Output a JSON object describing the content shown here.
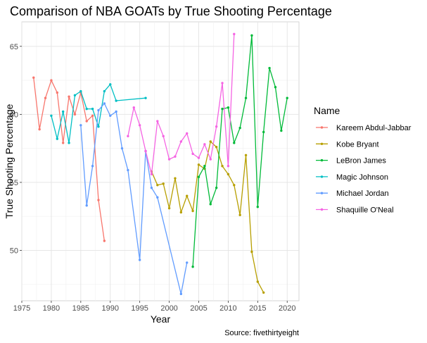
{
  "chart_data": {
    "type": "line",
    "title": "Comparison of NBA GOATs by True Shooting Percentage",
    "xlabel": "Year",
    "ylabel": "True Shooting Percentage",
    "caption": "Source: fivethirtyeight",
    "xlim": [
      1975,
      2022
    ],
    "ylim": [
      46.3,
      66.8
    ],
    "x_ticks": [
      1975,
      1980,
      1985,
      1990,
      1995,
      2000,
      2005,
      2010,
      2015,
      2020
    ],
    "y_ticks": [
      50,
      55,
      60,
      65
    ],
    "grid": true,
    "legend": {
      "title": "Name",
      "position": "right"
    },
    "series": [
      {
        "name": "Kareem Abdul-Jabbar",
        "color": "#F8766D",
        "x": [
          1977,
          1978,
          1979,
          1980,
          1981,
          1982,
          1983,
          1984,
          1985,
          1986,
          1987,
          1988,
          1989
        ],
        "y": [
          62.7,
          58.9,
          61.2,
          62.5,
          61.6,
          57.9,
          61.3,
          60.0,
          61.6,
          59.5,
          59.9,
          53.7,
          50.7
        ]
      },
      {
        "name": "Kobe Bryant",
        "color": "#B79F00",
        "x": [
          1997,
          1998,
          1999,
          2000,
          2001,
          2002,
          2003,
          2004,
          2005,
          2006,
          2007,
          2008,
          2009,
          2010,
          2011,
          2012,
          2013,
          2014,
          2015,
          2016
        ],
        "y": [
          55.8,
          54.8,
          54.9,
          53.1,
          55.3,
          52.8,
          54.0,
          52.9,
          56.3,
          56.0,
          58.0,
          57.6,
          56.2,
          55.6,
          54.8,
          52.6,
          57.0,
          49.9,
          47.7,
          46.9
        ]
      },
      {
        "name": "LeBron James",
        "color": "#00BA38",
        "x": [
          2004,
          2005,
          2006,
          2007,
          2008,
          2009,
          2010,
          2011,
          2012,
          2013,
          2014,
          2015,
          2016,
          2017,
          2018,
          2019,
          2020
        ],
        "y": [
          48.8,
          55.4,
          56.2,
          53.4,
          54.6,
          60.4,
          60.5,
          57.9,
          59.0,
          61.2,
          65.8,
          53.2,
          58.7,
          63.4,
          62.0,
          58.8,
          61.2
        ]
      },
      {
        "name": "Magic Johnson",
        "color": "#00BFC4",
        "x": [
          1980,
          1981,
          1982,
          1983,
          1984,
          1985,
          1986,
          1987,
          1988,
          1989,
          1990,
          1991,
          1996
        ],
        "y": [
          59.9,
          58.2,
          60.2,
          57.9,
          61.4,
          61.7,
          60.4,
          60.4,
          59.1,
          61.7,
          62.2,
          61.0,
          61.2
        ]
      },
      {
        "name": "Michael Jordan",
        "color": "#619CFF",
        "x": [
          1985,
          1986,
          1987,
          1988,
          1989,
          1990,
          1991,
          1992,
          1993,
          1995,
          1996,
          1997,
          1998,
          2002,
          2003
        ],
        "y": [
          59.2,
          53.3,
          56.2,
          60.3,
          60.8,
          59.9,
          60.2,
          57.5,
          55.9,
          49.3,
          57.3,
          54.6,
          53.9,
          46.8,
          49.1
        ]
      },
      {
        "name": "Shaquille O'Neal",
        "color": "#F564E3",
        "x": [
          1993,
          1994,
          1995,
          1996,
          1997,
          1998,
          1999,
          2000,
          2001,
          2002,
          2003,
          2004,
          2005,
          2006,
          2007,
          2008,
          2009,
          2010,
          2011
        ],
        "y": [
          58.4,
          60.5,
          59.2,
          57.3,
          55.6,
          59.5,
          58.4,
          56.7,
          56.9,
          58.0,
          58.6,
          57.1,
          56.8,
          57.8,
          56.7,
          59.1,
          62.3,
          56.2,
          65.9
        ]
      }
    ]
  }
}
